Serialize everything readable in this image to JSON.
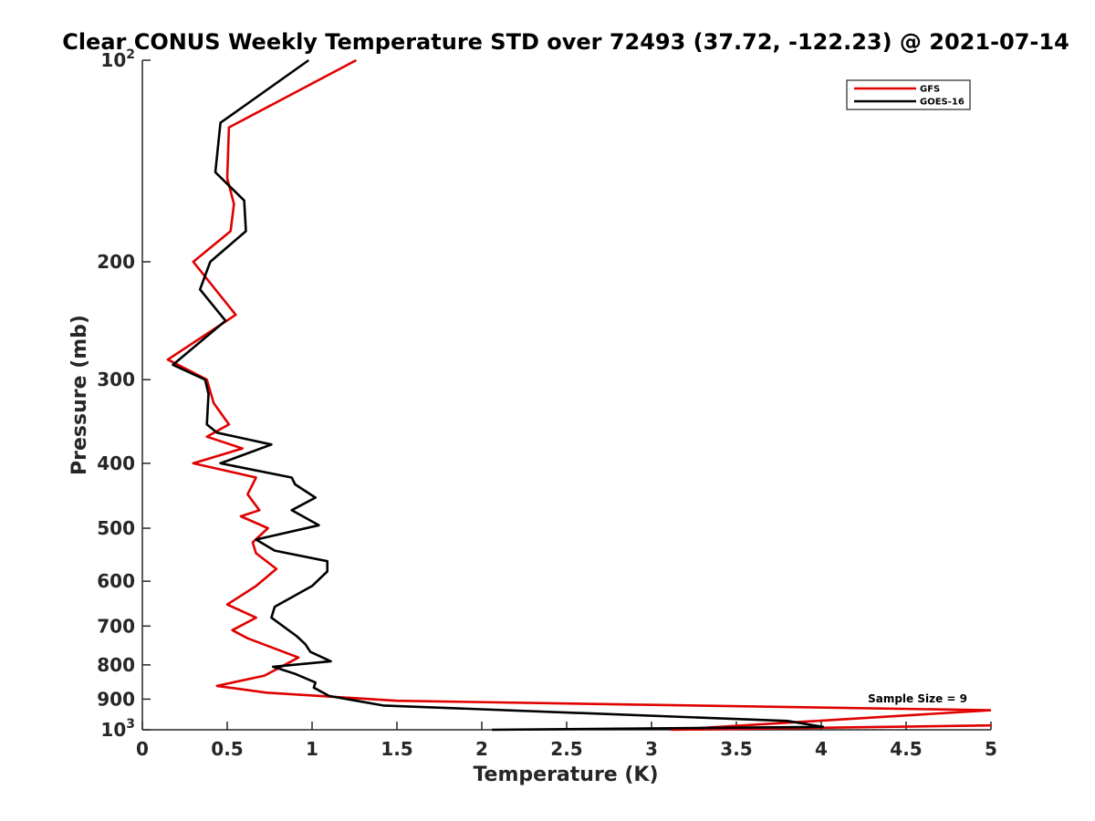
{
  "chart_data": {
    "type": "line",
    "title": "Clear CONUS Weekly Temperature STD over 72493 (37.72, -122.23) @ 2021-07-14",
    "xlabel": "Temperature (K)",
    "ylabel": "Pressure (mb)",
    "xlim": [
      0,
      5
    ],
    "ylim": [
      100,
      1000
    ],
    "y_scale": "log",
    "y_reversed": true,
    "grid": false,
    "legend_position": "top-right",
    "x_ticks": [
      "0",
      "0.5",
      "1",
      "1.5",
      "2",
      "2.5",
      "3",
      "3.5",
      "4",
      "4.5",
      "5"
    ],
    "y_ticks": [
      {
        "value": 100,
        "base": "10",
        "exp": "2"
      },
      {
        "value": 200,
        "label": "200"
      },
      {
        "value": 300,
        "label": "300"
      },
      {
        "value": 400,
        "label": "400"
      },
      {
        "value": 500,
        "label": "500"
      },
      {
        "value": 600,
        "label": "600"
      },
      {
        "value": 700,
        "label": "700"
      },
      {
        "value": 800,
        "label": "800"
      },
      {
        "value": 900,
        "label": "900"
      },
      {
        "value": 1000,
        "base": "10",
        "exp": "3"
      }
    ],
    "annotation": "Sample Size = 9",
    "series": [
      {
        "name": "GFS",
        "color": "#e00000",
        "points": [
          [
            1.26,
            100
          ],
          [
            0.51,
            126
          ],
          [
            0.5,
            150
          ],
          [
            0.54,
            164
          ],
          [
            0.52,
            180
          ],
          [
            0.3,
            200
          ],
          [
            0.55,
            240
          ],
          [
            0.15,
            280
          ],
          [
            0.38,
            300
          ],
          [
            0.42,
            325
          ],
          [
            0.51,
            350
          ],
          [
            0.38,
            365
          ],
          [
            0.59,
            380
          ],
          [
            0.3,
            400
          ],
          [
            0.67,
            420
          ],
          [
            0.62,
            445
          ],
          [
            0.69,
            470
          ],
          [
            0.58,
            480
          ],
          [
            0.74,
            500
          ],
          [
            0.65,
            525
          ],
          [
            0.67,
            545
          ],
          [
            0.79,
            575
          ],
          [
            0.67,
            610
          ],
          [
            0.5,
            650
          ],
          [
            0.67,
            680
          ],
          [
            0.53,
            710
          ],
          [
            0.62,
            730
          ],
          [
            0.92,
            780
          ],
          [
            0.72,
            830
          ],
          [
            0.44,
            860
          ],
          [
            0.73,
            880
          ],
          [
            1.5,
            905
          ],
          [
            5.0,
            935
          ],
          [
            3.12,
            1000
          ],
          [
            5.0,
            985
          ]
        ]
      },
      {
        "name": "GOES-16",
        "color": "#000000",
        "points": [
          [
            0.98,
            100
          ],
          [
            0.46,
            124
          ],
          [
            0.43,
            147
          ],
          [
            0.6,
            162
          ],
          [
            0.61,
            180
          ],
          [
            0.4,
            200
          ],
          [
            0.34,
            220
          ],
          [
            0.49,
            245
          ],
          [
            0.18,
            285
          ],
          [
            0.37,
            300
          ],
          [
            0.39,
            315
          ],
          [
            0.38,
            350
          ],
          [
            0.44,
            360
          ],
          [
            0.76,
            375
          ],
          [
            0.46,
            400
          ],
          [
            0.88,
            420
          ],
          [
            0.9,
            430
          ],
          [
            1.02,
            450
          ],
          [
            0.88,
            470
          ],
          [
            1.04,
            495
          ],
          [
            0.67,
            520
          ],
          [
            0.78,
            540
          ],
          [
            1.09,
            560
          ],
          [
            1.09,
            580
          ],
          [
            1.0,
            610
          ],
          [
            0.78,
            655
          ],
          [
            0.76,
            680
          ],
          [
            0.91,
            725
          ],
          [
            0.96,
            745
          ],
          [
            0.99,
            765
          ],
          [
            1.11,
            790
          ],
          [
            0.77,
            805
          ],
          [
            0.9,
            825
          ],
          [
            1.02,
            850
          ],
          [
            1.01,
            865
          ],
          [
            1.1,
            890
          ],
          [
            1.42,
            920
          ],
          [
            3.8,
            970
          ],
          [
            4.01,
            990
          ],
          [
            2.06,
            1000
          ]
        ]
      }
    ]
  }
}
